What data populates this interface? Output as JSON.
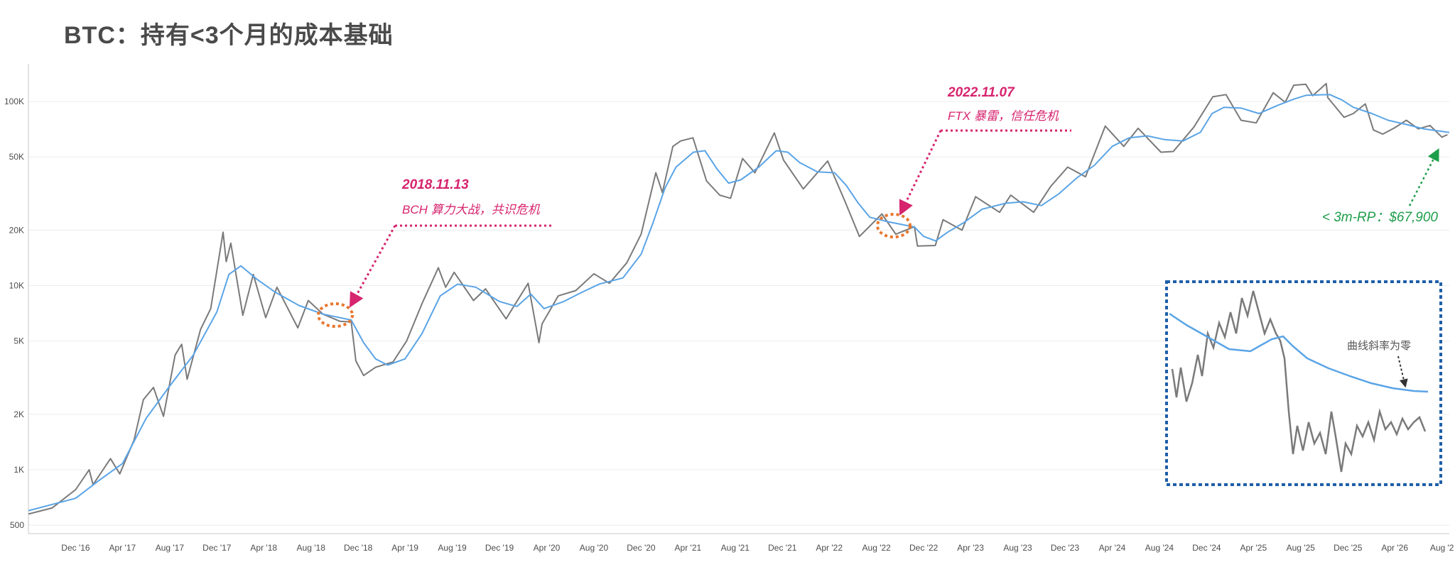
{
  "title": "BTC：持有<3个月的成本基础",
  "chart_data": {
    "type": "line",
    "y_scale": "log",
    "ylim": [
      450,
      160000
    ],
    "y_ticks": [
      {
        "value": 500,
        "label": "500"
      },
      {
        "value": 1000,
        "label": "1K"
      },
      {
        "value": 2000,
        "label": "2K"
      },
      {
        "value": 5000,
        "label": "5K"
      },
      {
        "value": 10000,
        "label": "10K"
      },
      {
        "value": 20000,
        "label": "20K"
      },
      {
        "value": 50000,
        "label": "50K"
      },
      {
        "value": 100000,
        "label": "100K"
      }
    ],
    "xlim": [
      "2016-08-01",
      "2026-08-20"
    ],
    "x_ticks": [
      {
        "date": "2016-12-01",
        "label": "Dec '16"
      },
      {
        "date": "2017-04-01",
        "label": "Apr '17"
      },
      {
        "date": "2017-08-01",
        "label": "Aug '17"
      },
      {
        "date": "2017-12-01",
        "label": "Dec '17"
      },
      {
        "date": "2018-04-01",
        "label": "Apr '18"
      },
      {
        "date": "2018-08-01",
        "label": "Aug '18"
      },
      {
        "date": "2018-12-01",
        "label": "Dec '18"
      },
      {
        "date": "2019-04-01",
        "label": "Apr '19"
      },
      {
        "date": "2019-08-01",
        "label": "Aug '19"
      },
      {
        "date": "2019-12-01",
        "label": "Dec '19"
      },
      {
        "date": "2020-04-01",
        "label": "Apr '20"
      },
      {
        "date": "2020-08-01",
        "label": "Aug '20"
      },
      {
        "date": "2020-12-01",
        "label": "Dec '20"
      },
      {
        "date": "2021-04-01",
        "label": "Apr '21"
      },
      {
        "date": "2021-08-01",
        "label": "Aug '21"
      },
      {
        "date": "2021-12-01",
        "label": "Dec '21"
      },
      {
        "date": "2022-04-01",
        "label": "Apr '22"
      },
      {
        "date": "2022-08-01",
        "label": "Aug '22"
      },
      {
        "date": "2022-12-01",
        "label": "Dec '22"
      },
      {
        "date": "2023-04-01",
        "label": "Apr '23"
      },
      {
        "date": "2023-08-01",
        "label": "Aug '23"
      },
      {
        "date": "2023-12-01",
        "label": "Dec '23"
      },
      {
        "date": "2024-04-01",
        "label": "Apr '24"
      },
      {
        "date": "2024-08-01",
        "label": "Aug '24"
      },
      {
        "date": "2024-12-01",
        "label": "Dec '24"
      },
      {
        "date": "2025-04-01",
        "label": "Apr '25"
      },
      {
        "date": "2025-08-01",
        "label": "Aug '25"
      },
      {
        "date": "2025-12-01",
        "label": "Dec '25"
      },
      {
        "date": "2026-04-01",
        "label": "Apr '26"
      },
      {
        "date": "2026-08-01",
        "label": "Aug '2"
      }
    ],
    "series": [
      {
        "color": "#7a7a7a",
        "points": [
          [
            "2016-08-01",
            575
          ],
          [
            "2016-10-01",
            620
          ],
          [
            "2016-12-01",
            780
          ],
          [
            "2017-01-05",
            1000
          ],
          [
            "2017-01-15",
            830
          ],
          [
            "2017-03-01",
            1150
          ],
          [
            "2017-03-25",
            950
          ],
          [
            "2017-05-01",
            1450
          ],
          [
            "2017-05-25",
            2400
          ],
          [
            "2017-06-20",
            2800
          ],
          [
            "2017-07-16",
            1950
          ],
          [
            "2017-08-15",
            4200
          ],
          [
            "2017-09-01",
            4800
          ],
          [
            "2017-09-15",
            3100
          ],
          [
            "2017-10-20",
            5800
          ],
          [
            "2017-11-15",
            7500
          ],
          [
            "2017-12-17",
            19500
          ],
          [
            "2017-12-25",
            13500
          ],
          [
            "2018-01-06",
            17000
          ],
          [
            "2018-02-06",
            6900
          ],
          [
            "2018-03-05",
            11500
          ],
          [
            "2018-04-06",
            6700
          ],
          [
            "2018-05-05",
            9800
          ],
          [
            "2018-06-28",
            5900
          ],
          [
            "2018-07-25",
            8300
          ],
          [
            "2018-09-01",
            7000
          ],
          [
            "2018-10-15",
            6400
          ],
          [
            "2018-11-13",
            6350
          ],
          [
            "2018-11-25",
            3900
          ],
          [
            "2018-12-15",
            3250
          ],
          [
            "2019-01-15",
            3600
          ],
          [
            "2019-03-01",
            3850
          ],
          [
            "2019-04-05",
            5000
          ],
          [
            "2019-05-15",
            8000
          ],
          [
            "2019-06-26",
            12500
          ],
          [
            "2019-07-15",
            9800
          ],
          [
            "2019-08-06",
            11800
          ],
          [
            "2019-09-25",
            8300
          ],
          [
            "2019-10-26",
            9600
          ],
          [
            "2019-12-18",
            6600
          ],
          [
            "2020-02-13",
            10300
          ],
          [
            "2020-03-12",
            4900
          ],
          [
            "2020-03-20",
            6200
          ],
          [
            "2020-05-01",
            8800
          ],
          [
            "2020-06-15",
            9400
          ],
          [
            "2020-08-01",
            11600
          ],
          [
            "2020-09-10",
            10300
          ],
          [
            "2020-10-25",
            13300
          ],
          [
            "2020-12-01",
            19000
          ],
          [
            "2021-01-08",
            41000
          ],
          [
            "2021-01-25",
            32000
          ],
          [
            "2021-02-21",
            57000
          ],
          [
            "2021-03-13",
            61000
          ],
          [
            "2021-04-14",
            63500
          ],
          [
            "2021-05-19",
            37000
          ],
          [
            "2021-06-22",
            31000
          ],
          [
            "2021-07-20",
            29800
          ],
          [
            "2021-08-20",
            49000
          ],
          [
            "2021-09-21",
            41000
          ],
          [
            "2021-11-10",
            67500
          ],
          [
            "2021-12-04",
            48000
          ],
          [
            "2022-01-24",
            33500
          ],
          [
            "2022-03-28",
            47500
          ],
          [
            "2022-05-12",
            28500
          ],
          [
            "2022-06-18",
            18500
          ],
          [
            "2022-08-15",
            24500
          ],
          [
            "2022-09-20",
            19000
          ],
          [
            "2022-11-07",
            20900
          ],
          [
            "2022-11-15",
            16400
          ],
          [
            "2022-12-31",
            16500
          ],
          [
            "2023-01-20",
            22800
          ],
          [
            "2023-03-10",
            20000
          ],
          [
            "2023-04-14",
            30400
          ],
          [
            "2023-06-15",
            25000
          ],
          [
            "2023-07-14",
            31000
          ],
          [
            "2023-09-11",
            25000
          ],
          [
            "2023-10-25",
            34500
          ],
          [
            "2023-12-08",
            44000
          ],
          [
            "2024-01-23",
            39000
          ],
          [
            "2024-03-14",
            73500
          ],
          [
            "2024-05-01",
            57000
          ],
          [
            "2024-06-07",
            71500
          ],
          [
            "2024-08-05",
            53000
          ],
          [
            "2024-09-06",
            53500
          ],
          [
            "2024-10-29",
            72500
          ],
          [
            "2024-12-17",
            106000
          ],
          [
            "2025-01-20",
            109000
          ],
          [
            "2025-02-28",
            79000
          ],
          [
            "2025-04-08",
            76500
          ],
          [
            "2025-05-22",
            111500
          ],
          [
            "2025-06-22",
            99000
          ],
          [
            "2025-07-14",
            122500
          ],
          [
            "2025-08-14",
            124000
          ],
          [
            "2025-09-01",
            107500
          ],
          [
            "2025-10-06",
            125000
          ],
          [
            "2025-10-10",
            105000
          ],
          [
            "2025-11-21",
            82000
          ],
          [
            "2025-12-15",
            86000
          ],
          [
            "2026-01-15",
            97000
          ],
          [
            "2026-02-05",
            70000
          ],
          [
            "2026-03-01",
            66500
          ],
          [
            "2026-04-01",
            72000
          ],
          [
            "2026-05-01",
            79000
          ],
          [
            "2026-06-01",
            71000
          ],
          [
            "2026-07-01",
            74000
          ],
          [
            "2026-08-01",
            64000
          ],
          [
            "2026-08-15",
            66000
          ]
        ]
      },
      {
        "color": "#5aa4e6",
        "points": [
          [
            "2016-08-01",
            600
          ],
          [
            "2016-12-01",
            700
          ],
          [
            "2017-02-01",
            880
          ],
          [
            "2017-04-01",
            1080
          ],
          [
            "2017-06-01",
            1900
          ],
          [
            "2017-08-01",
            2850
          ],
          [
            "2017-10-01",
            4200
          ],
          [
            "2017-12-01",
            7200
          ],
          [
            "2018-01-01",
            11500
          ],
          [
            "2018-02-01",
            12800
          ],
          [
            "2018-03-15",
            10800
          ],
          [
            "2018-05-01",
            9200
          ],
          [
            "2018-07-01",
            7800
          ],
          [
            "2018-09-01",
            7000
          ],
          [
            "2018-11-13",
            6500
          ],
          [
            "2018-12-15",
            4900
          ],
          [
            "2019-01-15",
            4000
          ],
          [
            "2019-02-15",
            3700
          ],
          [
            "2019-04-01",
            4000
          ],
          [
            "2019-05-15",
            5500
          ],
          [
            "2019-07-01",
            8800
          ],
          [
            "2019-08-15",
            10200
          ],
          [
            "2019-10-01",
            9800
          ],
          [
            "2019-12-01",
            8200
          ],
          [
            "2020-01-15",
            7700
          ],
          [
            "2020-02-20",
            9000
          ],
          [
            "2020-03-25",
            7500
          ],
          [
            "2020-05-15",
            8200
          ],
          [
            "2020-07-01",
            9200
          ],
          [
            "2020-08-15",
            10200
          ],
          [
            "2020-10-15",
            11000
          ],
          [
            "2020-12-01",
            14800
          ],
          [
            "2021-01-01",
            22000
          ],
          [
            "2021-02-01",
            34000
          ],
          [
            "2021-03-01",
            44000
          ],
          [
            "2021-04-15",
            53000
          ],
          [
            "2021-05-15",
            54000
          ],
          [
            "2021-06-15",
            43000
          ],
          [
            "2021-07-15",
            36000
          ],
          [
            "2021-08-15",
            37500
          ],
          [
            "2021-10-01",
            44000
          ],
          [
            "2021-11-15",
            54000
          ],
          [
            "2021-12-15",
            53000
          ],
          [
            "2022-01-15",
            46500
          ],
          [
            "2022-03-01",
            41500
          ],
          [
            "2022-04-15",
            41000
          ],
          [
            "2022-05-15",
            35000
          ],
          [
            "2022-06-15",
            28000
          ],
          [
            "2022-07-15",
            23500
          ],
          [
            "2022-09-01",
            22200
          ],
          [
            "2022-11-07",
            20800
          ],
          [
            "2022-12-01",
            18500
          ],
          [
            "2023-01-01",
            17500
          ],
          [
            "2023-02-01",
            19500
          ],
          [
            "2023-03-15",
            22000
          ],
          [
            "2023-05-01",
            26000
          ],
          [
            "2023-07-01",
            28000
          ],
          [
            "2023-08-15",
            28500
          ],
          [
            "2023-10-01",
            27200
          ],
          [
            "2023-11-15",
            31500
          ],
          [
            "2024-01-01",
            38500
          ],
          [
            "2024-02-15",
            45000
          ],
          [
            "2024-04-01",
            57000
          ],
          [
            "2024-05-15",
            63500
          ],
          [
            "2024-07-01",
            65000
          ],
          [
            "2024-08-15",
            62000
          ],
          [
            "2024-10-01",
            61000
          ],
          [
            "2024-11-15",
            68000
          ],
          [
            "2024-12-15",
            86000
          ],
          [
            "2025-01-15",
            93000
          ],
          [
            "2025-03-01",
            92000
          ],
          [
            "2025-04-15",
            86000
          ],
          [
            "2025-06-01",
            95000
          ],
          [
            "2025-07-15",
            103000
          ],
          [
            "2025-08-15",
            108000
          ],
          [
            "2025-10-15",
            109000
          ],
          [
            "2025-11-15",
            102000
          ],
          [
            "2025-12-15",
            93000
          ],
          [
            "2026-02-01",
            86000
          ],
          [
            "2026-03-15",
            79000
          ],
          [
            "2026-05-01",
            75000
          ],
          [
            "2026-06-15",
            71000
          ],
          [
            "2026-08-20",
            67900
          ]
        ]
      }
    ],
    "annotations": [
      {
        "date": "2018.11.13",
        "text": "BCH 算力大战，共识危机",
        "point": [
          "2018-11-13",
          6400
        ]
      },
      {
        "date": "2022.11.07",
        "text": "FTX 暴雷，信任危机",
        "point": [
          "2022-11-07",
          20900
        ]
      }
    ],
    "current_label": "< 3m-RP：$67,900",
    "inset_label": "曲线斜率为零"
  },
  "colors": {
    "price": "#7a7a7a",
    "cost_basis": "#5aa4e6",
    "annotation": "#d6246e",
    "highlight_circle": "#e8772e",
    "rp_label": "#1e9e4a",
    "inset_border": "#1f5fa8"
  }
}
